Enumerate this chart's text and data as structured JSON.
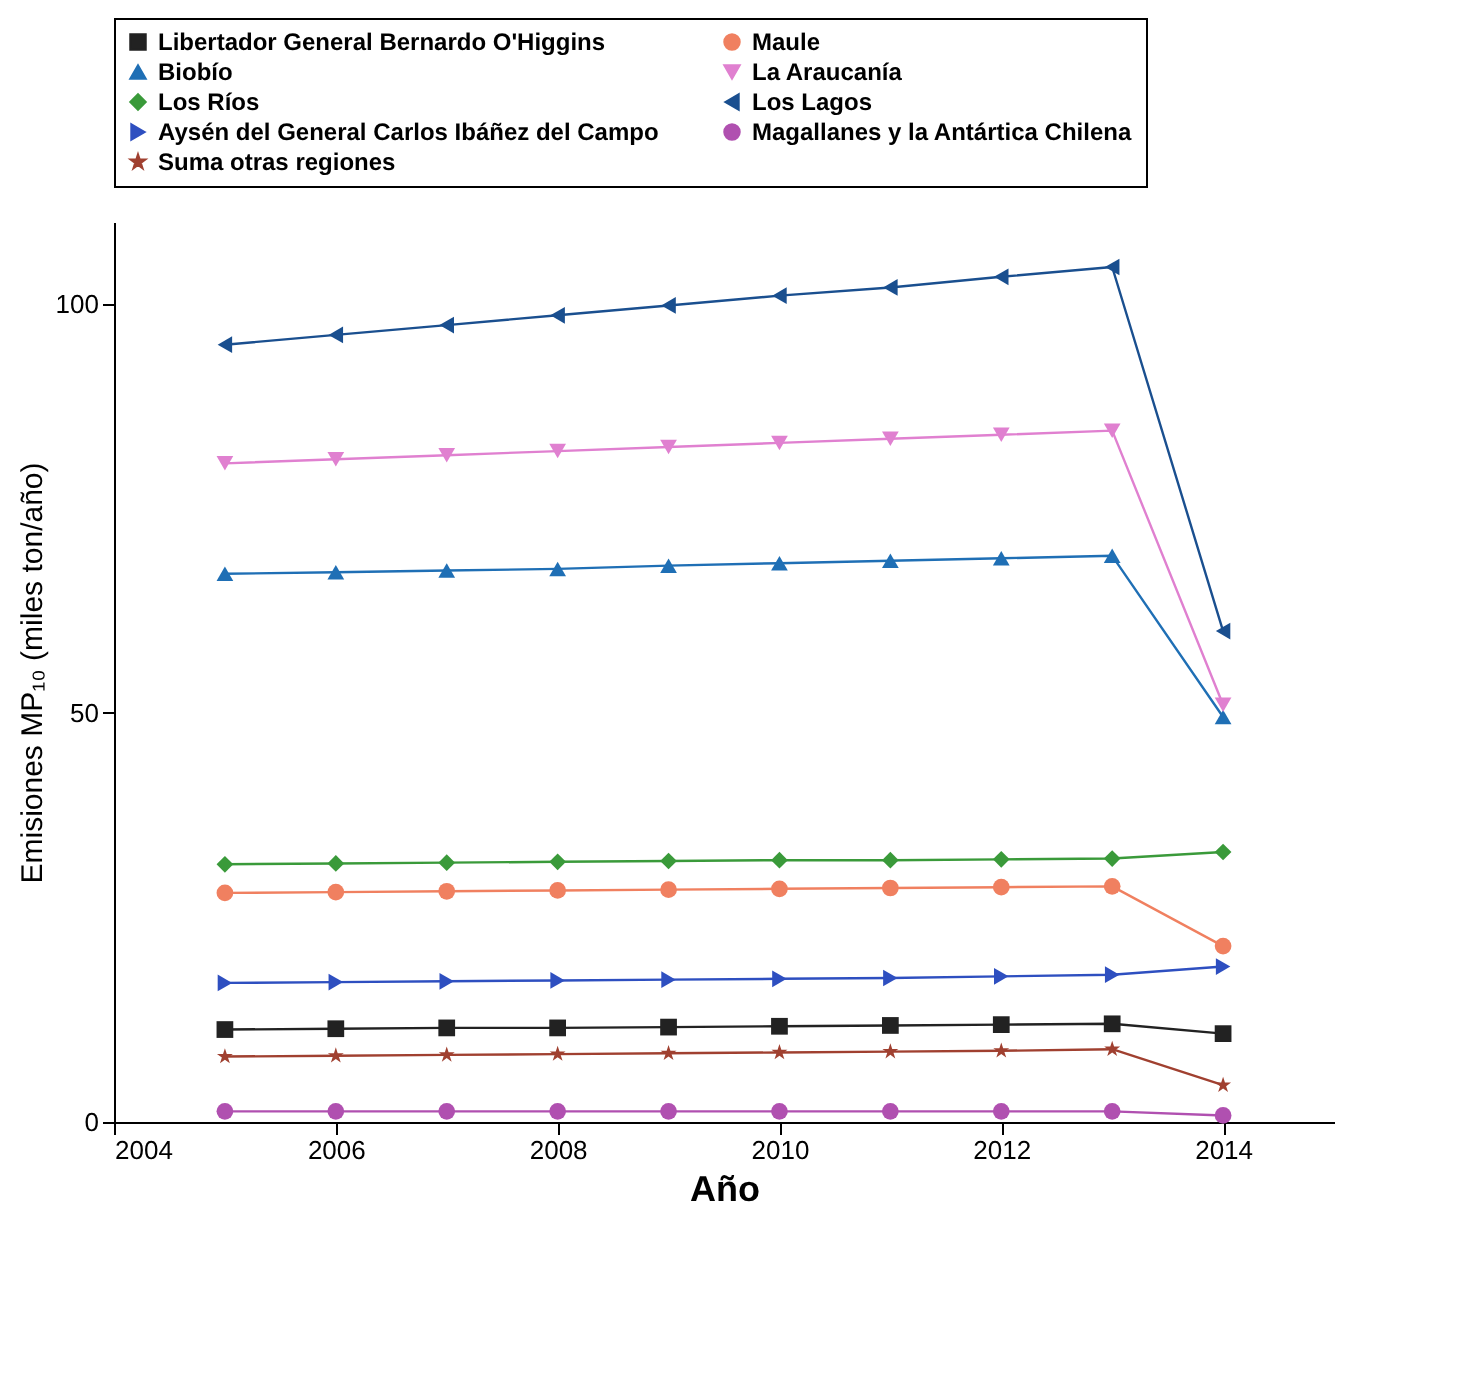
{
  "chart_data": {
    "type": "line",
    "xlabel": "Año",
    "ylabel": "Emisiones MP₁₀ (miles ton/año)",
    "x": [
      2005,
      2006,
      2007,
      2008,
      2009,
      2010,
      2011,
      2012,
      2013,
      2014
    ],
    "xlim": [
      2004,
      2015
    ],
    "xticks": [
      2004,
      2006,
      2008,
      2010,
      2012,
      2014
    ],
    "ylim": [
      0,
      110
    ],
    "yticks": [
      0,
      50,
      100
    ],
    "legend": "top",
    "line_style": "solid",
    "series": [
      {
        "name": "Libertador General Bernardo O'Higgins",
        "color": "#222222",
        "marker": "square",
        "values": [
          11.3,
          11.4,
          11.5,
          11.5,
          11.6,
          11.7,
          11.8,
          11.9,
          12,
          10.8
        ]
      },
      {
        "name": "Maule",
        "color": "#f08060",
        "marker": "circle",
        "values": [
          28,
          28.1,
          28.2,
          28.3,
          28.4,
          28.5,
          28.6,
          28.7,
          28.8,
          21.5
        ]
      },
      {
        "name": "Biobío",
        "color": "#1f6fb5",
        "marker": "triangle-up",
        "values": [
          67,
          67.2,
          67.4,
          67.6,
          68,
          68.3,
          68.6,
          68.9,
          69.2,
          49.5
        ]
      },
      {
        "name": "La Araucanía",
        "color": "#e080d0",
        "marker": "triangle-down",
        "values": [
          80.5,
          81,
          81.5,
          82,
          82.5,
          83,
          83.5,
          84,
          84.5,
          51
        ]
      },
      {
        "name": "Los Ríos",
        "color": "#3a9a3a",
        "marker": "diamond",
        "values": [
          31.5,
          31.6,
          31.7,
          31.8,
          31.9,
          32,
          32,
          32.1,
          32.2,
          33
        ]
      },
      {
        "name": "Los Lagos",
        "color": "#1a4f8f",
        "marker": "triangle-left",
        "values": [
          95,
          96.2,
          97.4,
          98.6,
          99.8,
          101,
          102,
          103.3,
          104.5,
          60
        ]
      },
      {
        "name": "Aysén del General Carlos Ibáñez del Campo",
        "color": "#2e4fc0",
        "marker": "triangle-right",
        "values": [
          17,
          17.1,
          17.2,
          17.3,
          17.4,
          17.5,
          17.6,
          17.8,
          18,
          19
        ]
      },
      {
        "name": "Magallanes y la Antártica Chilena",
        "color": "#b050b0",
        "marker": "circle",
        "values": [
          1.3,
          1.3,
          1.3,
          1.3,
          1.3,
          1.3,
          1.3,
          1.3,
          1.3,
          0.8
        ]
      },
      {
        "name": "Suma otras regiones",
        "color": "#a04030",
        "marker": "star",
        "values": [
          8,
          8.1,
          8.2,
          8.3,
          8.4,
          8.5,
          8.6,
          8.7,
          8.9,
          4.5
        ]
      }
    ]
  }
}
